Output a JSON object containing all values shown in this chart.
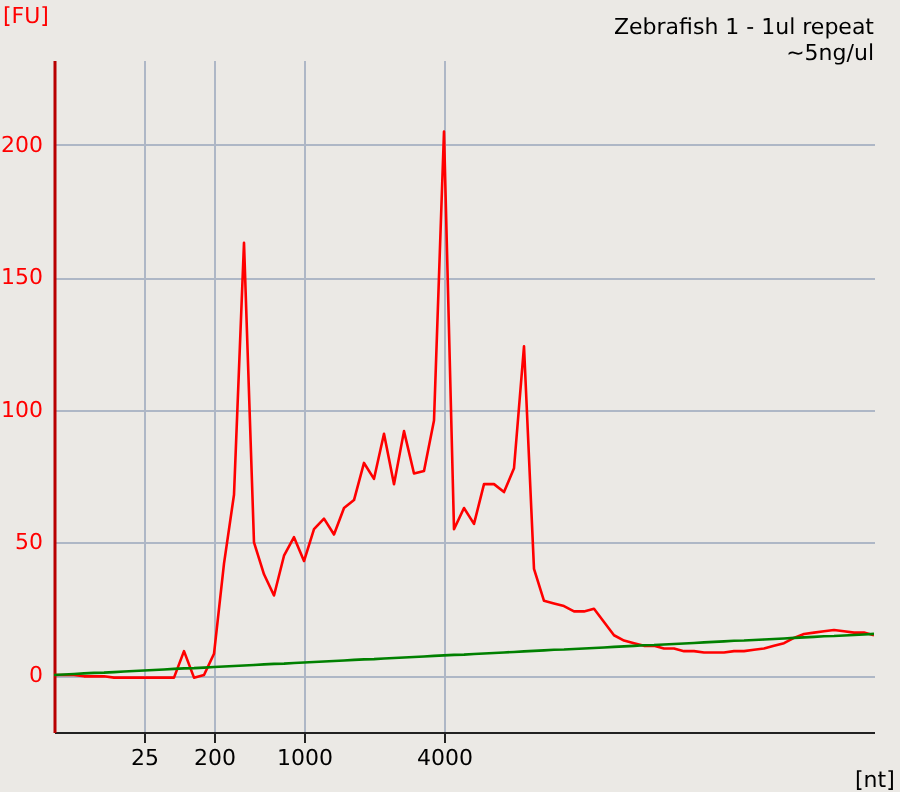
{
  "chart_data": {
    "type": "line",
    "title": "Zebrafish 1 - 1ul repeat",
    "subtitle": "~5ng/ul",
    "xlabel": "[nt]",
    "ylabel": "[FU]",
    "categories": [
      null,
      null,
      null,
      null,
      null,
      null,
      null,
      null,
      null,
      "25",
      null,
      null,
      null,
      null,
      null,
      null,
      "200",
      null,
      null,
      null,
      null,
      null,
      null,
      null,
      null,
      "1000",
      null,
      null,
      null,
      null,
      null,
      null,
      null,
      null,
      null,
      null,
      null,
      null,
      null,
      "4000",
      null,
      null,
      null,
      null,
      null,
      null,
      null,
      null,
      null,
      null,
      null,
      null,
      null,
      null,
      null,
      null,
      null,
      null,
      null,
      null,
      null,
      null,
      null,
      null,
      null,
      null,
      null,
      null,
      null,
      null,
      null,
      null,
      null,
      null,
      null,
      null,
      null,
      null,
      null,
      null,
      null,
      null,
      null
    ],
    "ylim": [
      -21.5,
      232
    ],
    "yticks": [
      0,
      50,
      100,
      150,
      200
    ],
    "grid": true,
    "line_style": "solid",
    "series": [
      {
        "color": "#ff0000",
        "values": [
          0,
          0,
          0,
          -0.5,
          -0.5,
          -0.5,
          -1,
          -1,
          -1,
          -1,
          -1,
          -1,
          -1,
          9,
          -1,
          0,
          8,
          42,
          68,
          163,
          50,
          38,
          30,
          45,
          52,
          43,
          55,
          59,
          53,
          63,
          66,
          80,
          74,
          91,
          72,
          92,
          76,
          77,
          96,
          205,
          55,
          63,
          57,
          72,
          72,
          69,
          78,
          124,
          40,
          28,
          27,
          26,
          24,
          24,
          25,
          20,
          15,
          13,
          12,
          11,
          11,
          10,
          10,
          9,
          9,
          8.5,
          8.5,
          8.5,
          9,
          9,
          9.5,
          10,
          11,
          12,
          14,
          15.5,
          16,
          16.5,
          17,
          16.5,
          16,
          16,
          15
        ]
      },
      {
        "color": "#008000",
        "values": [
          0,
          0.2,
          0.4,
          0.6,
          0.8,
          0.9,
          1.1,
          1.3,
          1.5,
          1.7,
          1.9,
          2.1,
          2.3,
          2.5,
          2.6,
          2.8,
          3.0,
          3.2,
          3.4,
          3.6,
          3.8,
          4.0,
          4.2,
          4.3,
          4.5,
          4.7,
          4.9,
          5.1,
          5.3,
          5.5,
          5.7,
          5.9,
          6.0,
          6.2,
          6.4,
          6.6,
          6.8,
          7.0,
          7.2,
          7.4,
          7.6,
          7.7,
          7.9,
          8.1,
          8.3,
          8.5,
          8.7,
          8.9,
          9.1,
          9.3,
          9.5,
          9.6,
          9.8,
          10.0,
          10.2,
          10.4,
          10.6,
          10.8,
          11.0,
          11.2,
          11.3,
          11.5,
          11.7,
          11.9,
          12.1,
          12.3,
          12.5,
          12.7,
          12.9,
          13.0,
          13.2,
          13.4,
          13.6,
          13.8,
          14.0,
          14.2,
          14.4,
          14.6,
          14.7,
          14.9,
          15.1,
          15.3,
          15.5
        ]
      }
    ]
  }
}
